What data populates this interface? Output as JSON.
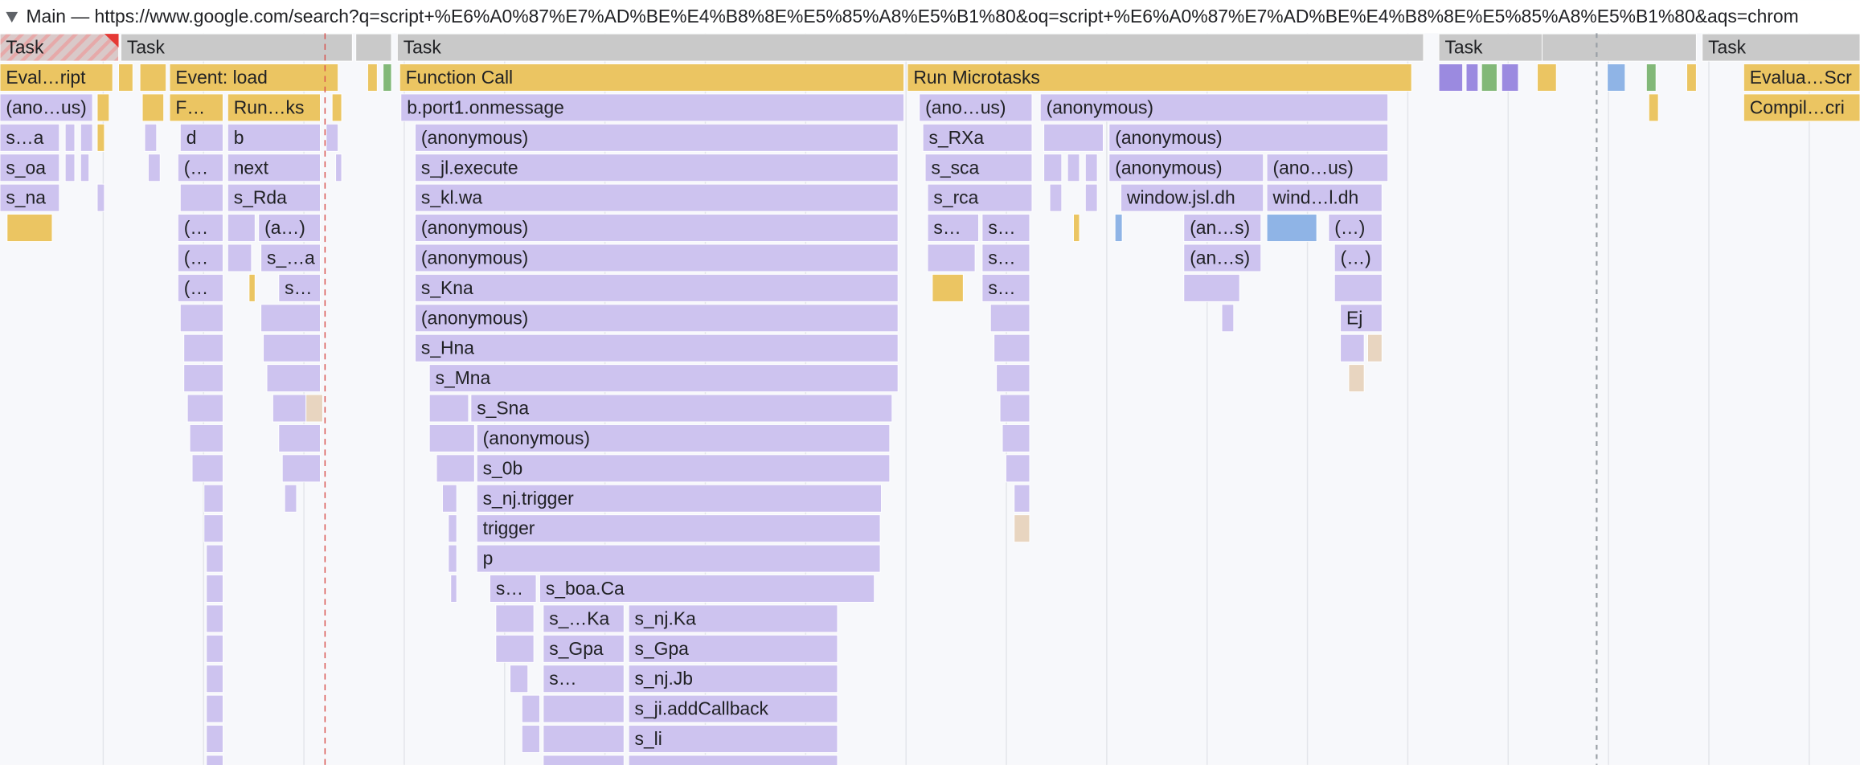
{
  "header": {
    "title": "Main — https://www.google.com/search?q=script+%E6%A0%87%E7%AD%BE%E4%B8%8E%E5%85%A8%E5%B1%80&oq=script+%E6%A0%87%E7%AD%BE%E4%B8%8E%E5%85%A8%E5%B1%80&aqs=chrom"
  },
  "entries": [
    {
      "label": "Task"
    },
    {
      "label": "Task"
    },
    {
      "label": "Task"
    },
    {
      "label": "Task"
    },
    {
      "label": "Task"
    },
    {
      "label": "Eval…ript"
    },
    {
      "label": "Event: load"
    },
    {
      "label": "Function Call"
    },
    {
      "label": "Run Microtasks"
    },
    {
      "label": "Evalua…Scr"
    },
    {
      "label": "(ano…us)"
    },
    {
      "label": "F…"
    },
    {
      "label": "Run…ks"
    },
    {
      "label": "b.port1.onmessage"
    },
    {
      "label": "(ano…us)"
    },
    {
      "label": "(anonymous)"
    },
    {
      "label": "Compil…cri"
    },
    {
      "label": "s…a"
    },
    {
      "label": "d"
    },
    {
      "label": "b"
    },
    {
      "label": "(anonymous)"
    },
    {
      "label": "s_RXa"
    },
    {
      "label": "(anonymous)"
    },
    {
      "label": "s_oa"
    },
    {
      "label": "(…"
    },
    {
      "label": "next"
    },
    {
      "label": "s_jl.execute"
    },
    {
      "label": "s_sca"
    },
    {
      "label": "(anonymous)"
    },
    {
      "label": "(ano…us)"
    },
    {
      "label": "s_na"
    },
    {
      "label": "s_Rda"
    },
    {
      "label": "s_kl.wa"
    },
    {
      "label": "s_rca"
    },
    {
      "label": "window.jsl.dh"
    },
    {
      "label": "wind…l.dh"
    },
    {
      "label": "(…"
    },
    {
      "label": "(a…)"
    },
    {
      "label": "(anonymous)"
    },
    {
      "label": "s…"
    },
    {
      "label": "s…"
    },
    {
      "label": "(an…s)"
    },
    {
      "label": "(…)"
    },
    {
      "label": "(…"
    },
    {
      "label": "s_…a"
    },
    {
      "label": "(anonymous)"
    },
    {
      "label": "s…"
    },
    {
      "label": "(an…s)"
    },
    {
      "label": "(…)"
    },
    {
      "label": "(…"
    },
    {
      "label": "s…"
    },
    {
      "label": "s_Kna"
    },
    {
      "label": "s…"
    },
    {
      "label": "(anonymous)"
    },
    {
      "label": "Ej"
    },
    {
      "label": "s_Hna"
    },
    {
      "label": "s_Mna"
    },
    {
      "label": "s_Sna"
    },
    {
      "label": "(anonymous)"
    },
    {
      "label": "s_0b"
    },
    {
      "label": "s_nj.trigger"
    },
    {
      "label": "trigger"
    },
    {
      "label": "p"
    },
    {
      "label": "s…"
    },
    {
      "label": "s_boa.Ca"
    },
    {
      "label": "s_…Ka"
    },
    {
      "label": "s_nj.Ka"
    },
    {
      "label": "s_Gpa"
    },
    {
      "label": "s_Gpa"
    },
    {
      "label": "s…"
    },
    {
      "label": "s_nj.Jb"
    },
    {
      "label": "s_ji.addCallback"
    },
    {
      "label": "s_li"
    }
  ]
}
